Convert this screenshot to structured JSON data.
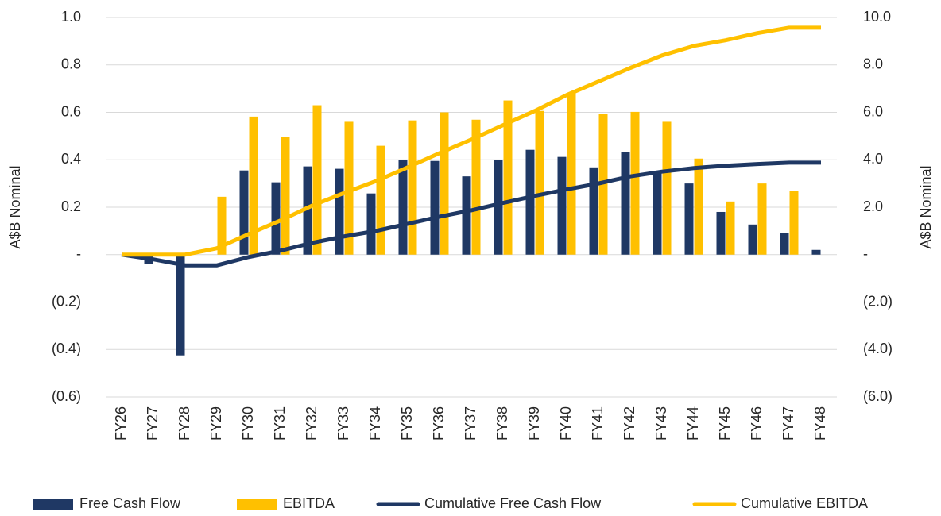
{
  "chart_data": {
    "type": "bar_line",
    "y_label": "A$B Nominal",
    "y2_label": "A$B Nominal",
    "categories": [
      "FY26",
      "FY27",
      "FY28",
      "FY29",
      "FY30",
      "FY31",
      "FY32",
      "FY33",
      "FY34",
      "FY35",
      "FY36",
      "FY37",
      "FY38",
      "FY39",
      "FY40",
      "FY41",
      "FY42",
      "FY43",
      "FY44",
      "FY45",
      "FY46",
      "FY47",
      "FY48"
    ],
    "series": [
      {
        "name": "Free Cash Flow",
        "kind": "bar",
        "color": "#1f3864",
        "values": [
          0,
          -0.04,
          -0.425,
          0,
          0.355,
          0.305,
          0.372,
          0.362,
          0.258,
          0.4,
          0.395,
          0.33,
          0.398,
          0.442,
          0.412,
          0.368,
          0.432,
          0.35,
          0.3,
          0.18,
          0.127,
          0.09,
          0.02
        ]
      },
      {
        "name": "EBITDA",
        "kind": "bar",
        "color": "#ffc000",
        "values": [
          0,
          0,
          0,
          0.244,
          0.582,
          0.495,
          0.63,
          0.56,
          0.459,
          0.566,
          0.6,
          0.569,
          0.65,
          0.606,
          0.68,
          0.592,
          0.602,
          0.56,
          0.405,
          0.224,
          0.3,
          0.268,
          0
        ]
      },
      {
        "name": "Cumulative Free Cash Flow",
        "kind": "line",
        "axis": "y2",
        "color": "#1f3864",
        "values": [
          0,
          -0.2,
          -0.45,
          -0.45,
          -0.1,
          0.17,
          0.5,
          0.77,
          1.0,
          1.3,
          1.6,
          1.87,
          2.18,
          2.48,
          2.75,
          3.0,
          3.3,
          3.5,
          3.65,
          3.75,
          3.82,
          3.88,
          3.88
        ]
      },
      {
        "name": "Cumulative EBITDA",
        "kind": "line",
        "axis": "y2",
        "color": "#ffc000",
        "values": [
          0,
          0,
          0,
          0.27,
          0.87,
          1.44,
          2.07,
          2.6,
          3.1,
          3.68,
          4.28,
          4.85,
          5.46,
          6.06,
          6.73,
          7.3,
          7.87,
          8.4,
          8.8,
          9.04,
          9.34,
          9.57,
          9.57
        ]
      }
    ],
    "ylim": [
      -0.6,
      1.0
    ],
    "yticks": [
      {
        "value": 1.0,
        "label": "1.0"
      },
      {
        "value": 0.8,
        "label": "0.8"
      },
      {
        "value": 0.6,
        "label": "0.6"
      },
      {
        "value": 0.4,
        "label": "0.4"
      },
      {
        "value": 0.2,
        "label": "0.2"
      },
      {
        "value": 0,
        "label": "-"
      },
      {
        "value": -0.2,
        "label": "(0.2)"
      },
      {
        "value": -0.4,
        "label": "(0.4)"
      },
      {
        "value": -0.6,
        "label": "(0.6)"
      }
    ],
    "y2lim": [
      -6,
      10
    ],
    "y2ticks": [
      {
        "value": 10,
        "label": "10.0"
      },
      {
        "value": 8,
        "label": "8.0"
      },
      {
        "value": 6,
        "label": "6.0"
      },
      {
        "value": 4,
        "label": "4.0"
      },
      {
        "value": 2,
        "label": "2.0"
      },
      {
        "value": 0,
        "label": "-"
      },
      {
        "value": -2,
        "label": "(2.0)"
      },
      {
        "value": -4,
        "label": "(4.0)"
      },
      {
        "value": -6,
        "label": "(6.0)"
      }
    ],
    "grid": true,
    "legend": "bottom"
  }
}
